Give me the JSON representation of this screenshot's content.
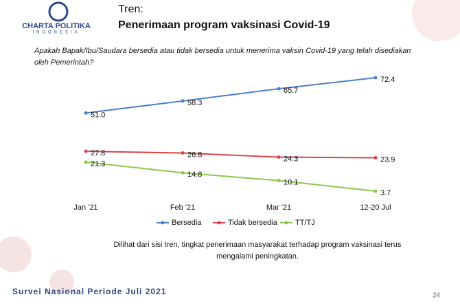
{
  "header": {
    "logo": "CHARTA POLITIKA",
    "logo_sub": "INDONESIA",
    "kicker": "Tren:"
  },
  "chart_data": {
    "type": "line",
    "title": "Penerimaan program vaksinasi Covid-19",
    "subtitle": "Apakah Bapak/Ibu/Saudara bersedia atau tidak bersedia untuk menerima vaksin Covid-19 yang telah disediakan oleh Pemerintah?",
    "categories": [
      "Jan '21",
      "Feb '21",
      "Mar '21",
      "12-20 Jul"
    ],
    "series": [
      {
        "name": "Bersedia",
        "color": "#4a7ec8",
        "values": [
          51.0,
          58.3,
          65.7,
          72.4
        ],
        "value_labels": [
          "51.0",
          "58.3",
          "65.7",
          "72.4"
        ]
      },
      {
        "name": "Tidak bersedia",
        "color": "#d9434a",
        "values": [
          27.8,
          26.8,
          24.3,
          23.9
        ],
        "value_labels": [
          "27.8",
          "26.8",
          "24.3",
          "23.9"
        ]
      },
      {
        "name": "TT/TJ",
        "color": "#8cc84b",
        "values": [
          21.3,
          14.8,
          10.1,
          3.7
        ],
        "value_labels": [
          "21.3",
          "14.8",
          "10.1",
          "3.7"
        ]
      }
    ],
    "legend": "bottom",
    "annotation": "Dilihat dari sisi tren, tingkat penerimaan masyarakat terhadap program vaksinasi terus mengalami peningkatan."
  },
  "footer": {
    "survey": "Survei Nasional Periode Juli 2021",
    "page": "24"
  }
}
